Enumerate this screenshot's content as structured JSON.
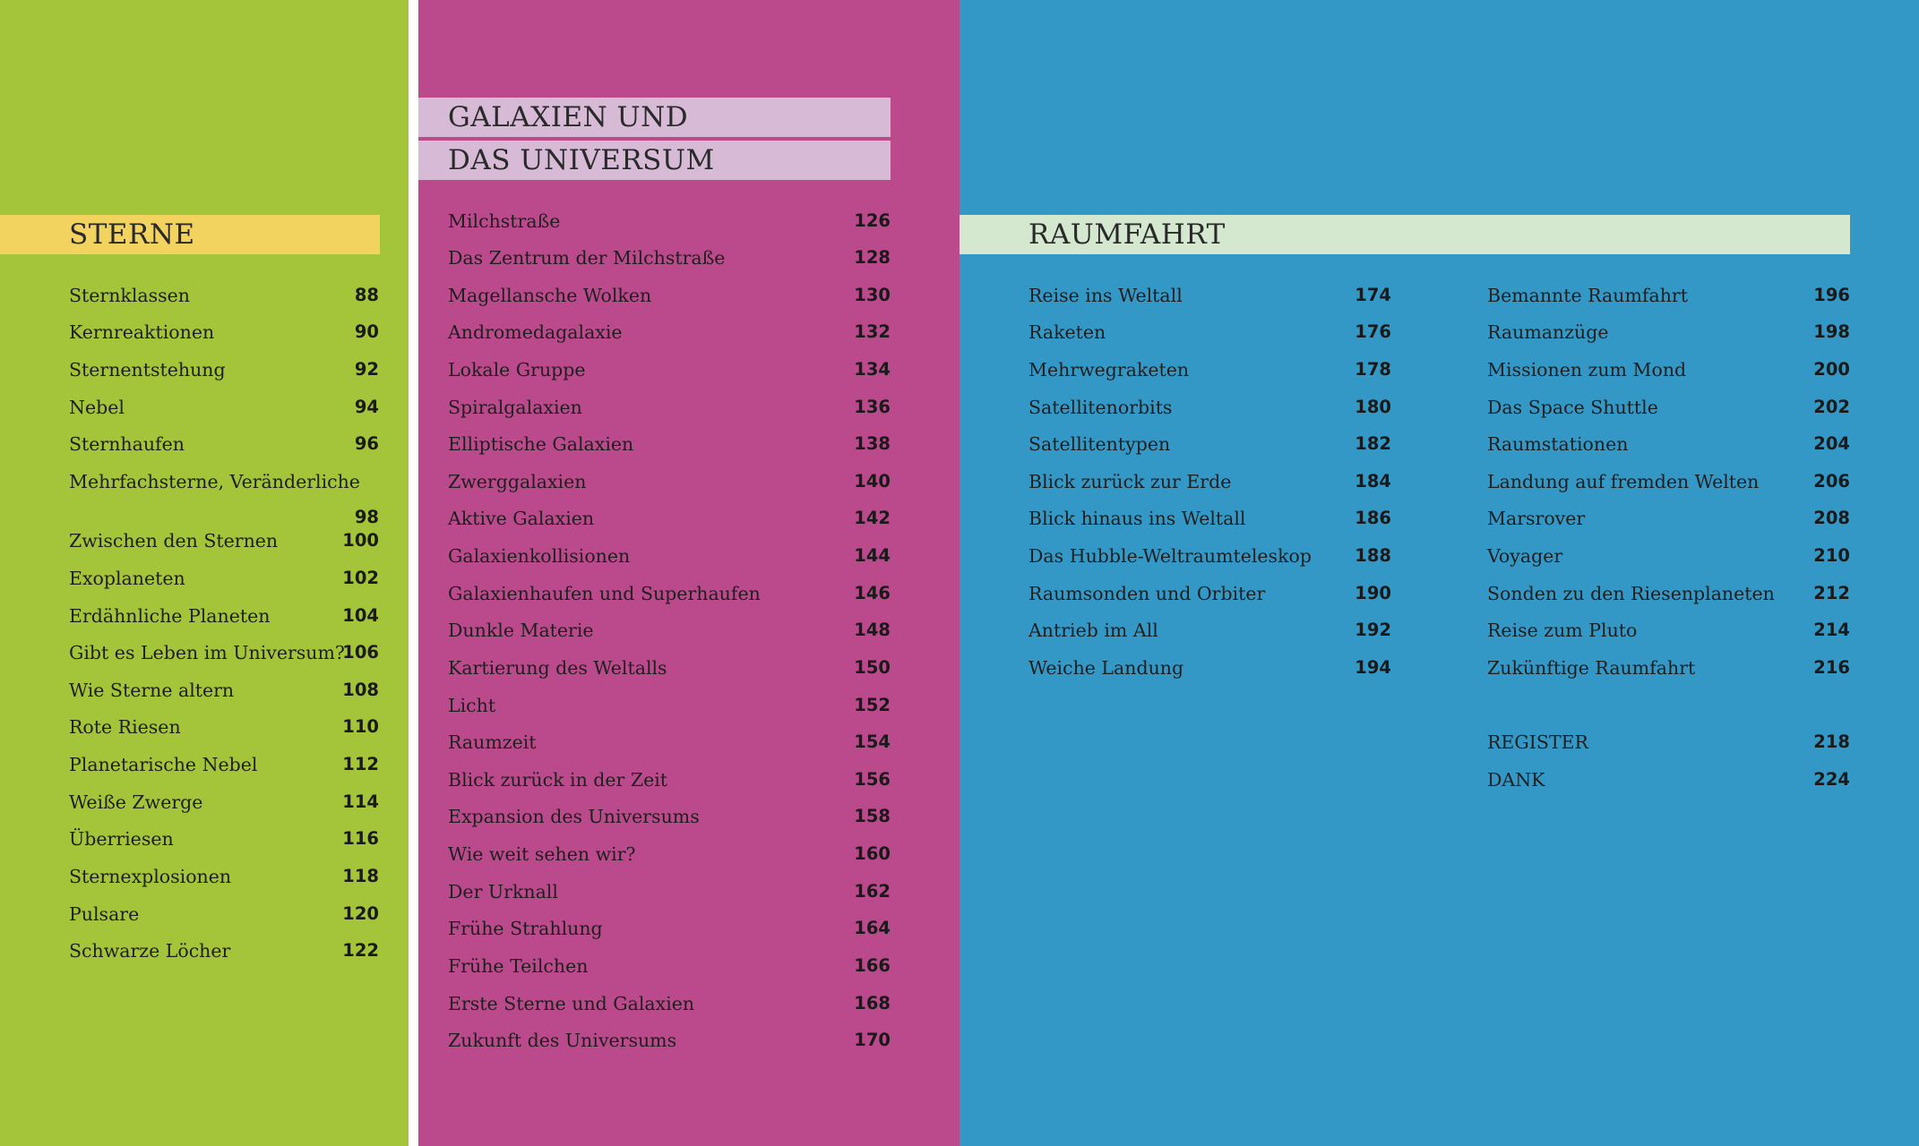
{
  "colors": {
    "green_panel": "#a4c53a",
    "magenta_panel": "#ba4a8b",
    "blue_panel": "#3498c7",
    "sterne_band": "#f2d35f",
    "galaxien_band": "#d6bad6",
    "raumfahrt_band": "#d3e8cf"
  },
  "sterne": {
    "heading": "STERNE",
    "entries": [
      {
        "title": "Sternklassen",
        "page": "88"
      },
      {
        "title": "Kernreaktionen",
        "page": "90"
      },
      {
        "title": "Sternentstehung",
        "page": "92"
      },
      {
        "title": "Nebel",
        "page": "94"
      },
      {
        "title": "Sternhaufen",
        "page": "96"
      },
      {
        "title": "Mehrfachsterne, Veränderliche",
        "page": "98"
      },
      {
        "title": "Zwischen den Sternen",
        "page": "100"
      },
      {
        "title": "Exoplaneten",
        "page": "102"
      },
      {
        "title": "Erdähnliche Planeten",
        "page": "104"
      },
      {
        "title": "Gibt es Leben im Universum?",
        "page": "106"
      },
      {
        "title": "Wie Sterne altern",
        "page": "108"
      },
      {
        "title": "Rote Riesen",
        "page": "110"
      },
      {
        "title": "Planetarische Nebel",
        "page": "112"
      },
      {
        "title": "Weiße Zwerge",
        "page": "114"
      },
      {
        "title": "Überriesen",
        "page": "116"
      },
      {
        "title": "Sternexplosionen",
        "page": "118"
      },
      {
        "title": "Pulsare",
        "page": "120"
      },
      {
        "title": "Schwarze Löcher",
        "page": "122"
      }
    ]
  },
  "galaxien": {
    "heading_line1": "GALAXIEN UND",
    "heading_line2": "DAS UNIVERSUM",
    "entries": [
      {
        "title": "Milchstraße",
        "page": "126"
      },
      {
        "title": "Das Zentrum der Milchstraße",
        "page": "128"
      },
      {
        "title": "Magellansche Wolken",
        "page": "130"
      },
      {
        "title": "Andromedagalaxie",
        "page": "132"
      },
      {
        "title": "Lokale Gruppe",
        "page": "134"
      },
      {
        "title": "Spiralgalaxien",
        "page": "136"
      },
      {
        "title": "Elliptische Galaxien",
        "page": "138"
      },
      {
        "title": "Zwerggalaxien",
        "page": "140"
      },
      {
        "title": "Aktive Galaxien",
        "page": "142"
      },
      {
        "title": "Galaxienkollisionen",
        "page": "144"
      },
      {
        "title": "Galaxienhaufen und Superhaufen",
        "page": "146"
      },
      {
        "title": "Dunkle Materie",
        "page": "148"
      },
      {
        "title": "Kartierung des Weltalls",
        "page": "150"
      },
      {
        "title": "Licht",
        "page": "152"
      },
      {
        "title": "Raumzeit",
        "page": "154"
      },
      {
        "title": "Blick zurück in der Zeit",
        "page": "156"
      },
      {
        "title": "Expansion des Universums",
        "page": "158"
      },
      {
        "title": "Wie weit sehen wir?",
        "page": "160"
      },
      {
        "title": "Der Urknall",
        "page": "162"
      },
      {
        "title": "Frühe Strahlung",
        "page": "164"
      },
      {
        "title": "Frühe Teilchen",
        "page": "166"
      },
      {
        "title": "Erste Sterne und Galaxien",
        "page": "168"
      },
      {
        "title": "Zukunft des Universums",
        "page": "170"
      }
    ]
  },
  "raumfahrt": {
    "heading": "RAUMFAHRT",
    "column1": [
      {
        "title": "Reise ins Weltall",
        "page": "174"
      },
      {
        "title": "Raketen",
        "page": "176"
      },
      {
        "title": "Mehrwegraketen",
        "page": "178"
      },
      {
        "title": "Satellitenorbits",
        "page": "180"
      },
      {
        "title": "Satellitentypen",
        "page": "182"
      },
      {
        "title": "Blick zurück zur Erde",
        "page": "184"
      },
      {
        "title": "Blick hinaus ins Weltall",
        "page": "186"
      },
      {
        "title": "Das Hubble-Weltraumteleskop",
        "page": "188"
      },
      {
        "title": "Raumsonden und Orbiter",
        "page": "190"
      },
      {
        "title": "Antrieb im All",
        "page": "192"
      },
      {
        "title": "Weiche Landung",
        "page": "194"
      }
    ],
    "column2": [
      {
        "title": "Bemannte Raumfahrt",
        "page": "196"
      },
      {
        "title": "Raumanzüge",
        "page": "198"
      },
      {
        "title": "Missionen zum Mond",
        "page": "200"
      },
      {
        "title": "Das Space Shuttle",
        "page": "202"
      },
      {
        "title": "Raumstationen",
        "page": "204"
      },
      {
        "title": "Landung auf fremden Welten",
        "page": "206"
      },
      {
        "title": "Marsrover",
        "page": "208"
      },
      {
        "title": "Voyager",
        "page": "210"
      },
      {
        "title": "Sonden zu den Riesenplaneten",
        "page": "212"
      },
      {
        "title": "Reise zum Pluto",
        "page": "214"
      },
      {
        "title": "Zukünftige Raumfahrt",
        "page": "216"
      }
    ],
    "appendix": [
      {
        "title": "REGISTER",
        "page": "218"
      },
      {
        "title": "DANK",
        "page": "224"
      }
    ]
  }
}
